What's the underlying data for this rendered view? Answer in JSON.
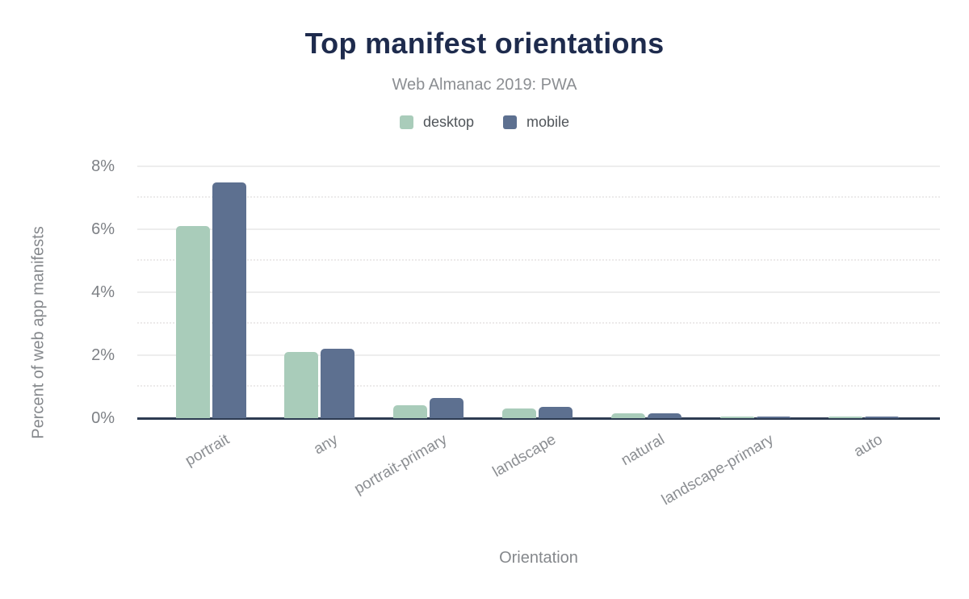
{
  "header": {
    "title": "Top manifest orientations",
    "subtitle": "Web Almanac 2019: PWA"
  },
  "chart_data": {
    "type": "bar",
    "title": "Top manifest orientations",
    "subtitle": "Web Almanac 2019: PWA",
    "xlabel": "Orientation",
    "ylabel": "Percent of web app manifests",
    "categories": [
      "portrait",
      "any",
      "portrait-primary",
      "landscape",
      "natural",
      "landscape-primary",
      "auto"
    ],
    "series": [
      {
        "name": "desktop",
        "color": "#a9ccba",
        "values": [
          6.1,
          2.1,
          0.4,
          0.3,
          0.15,
          0.05,
          0.05
        ]
      },
      {
        "name": "mobile",
        "color": "#5d7090",
        "values": [
          7.5,
          2.2,
          0.65,
          0.35,
          0.15,
          0.05,
          0.04
        ]
      }
    ],
    "ylim": [
      0,
      8
    ],
    "yticks": [
      0,
      2,
      4,
      6,
      8
    ],
    "ytick_labels": [
      "0%",
      "2%",
      "4%",
      "6%",
      "8%"
    ],
    "minor_gridlines": [
      1,
      3,
      5,
      7
    ],
    "legend_position": "top",
    "grid": true
  },
  "colors": {
    "title": "#1e2b4d",
    "subtitle": "#8b8e92",
    "axis_line": "#2d3b52",
    "grid_major": "#ededed",
    "grid_minor": "#eceaea",
    "tick_label": "#7d8085",
    "axis_title": "#85888c",
    "desktop_series": "#a9ccba",
    "mobile_series": "#5d7090"
  }
}
